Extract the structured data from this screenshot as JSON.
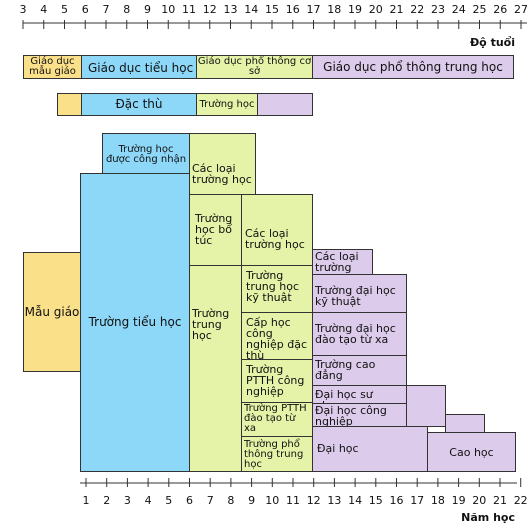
{
  "age_axis": {
    "title": "Độ tuổi",
    "ticks": [
      "3",
      "4",
      "5",
      "6",
      "7",
      "8",
      "9",
      "10",
      "11",
      "12",
      "13",
      "14",
      "15",
      "16",
      "17",
      "18",
      "19",
      "20",
      "21",
      "22",
      "23",
      "24",
      "25",
      "26",
      "27"
    ]
  },
  "year_axis": {
    "title": "Năm học",
    "ticks": [
      "1",
      "2",
      "3",
      "4",
      "5",
      "6",
      "7",
      "8",
      "9",
      "10",
      "11",
      "12",
      "13",
      "14",
      "15",
      "16",
      "17",
      "18",
      "19",
      "20",
      "21",
      "22"
    ]
  },
  "stages": {
    "preschool": "Giáo dục mẫu giáo",
    "primary": "Giáo dục tiểu học",
    "lower_secondary": "Giáo dục phổ thông cơ sở",
    "upper_secondary": "Giáo dục phổ thông trung học"
  },
  "special": {
    "label": "Đặc thù",
    "school": "Trường học"
  },
  "blocks": {
    "kindergarten": "Mẫu giáo",
    "primary_school": "Trường tiểu học",
    "recognized_school": "Trường học được công nhận",
    "other_schools_1": "Các loại trường học",
    "supplementary_school": "Trường học bổ túc",
    "other_schools_2": "Các loại trường học",
    "secondary_school": "Trường trung học",
    "technical_school": "Trường trung học kỹ thuật",
    "special_industrial": "Cấp học công nghiệp đặc thù",
    "industrial_high_school": "Trường PTTH công nghiệp",
    "distance_high_school": "Trường PTTH đào tạo từ xa",
    "general_high_school": "Trường phổ thông trung học",
    "other_schools_3": "Các loại trường học",
    "tech_university": "Trường đại học kỹ thuật",
    "distance_university": "Trường đại học đào tạo từ xa",
    "college": "Trường cao đẳng",
    "pedagogical_university": "Đại học sư phạm",
    "industrial_university": "Đại học công nghiệp",
    "university": "Đại học",
    "graduate": "Cao học"
  },
  "colors": {
    "preschool": "#fbe08a",
    "primary": "#8dd8f8",
    "secondary": "#e4f3a8",
    "higher": "#dccbea"
  }
}
